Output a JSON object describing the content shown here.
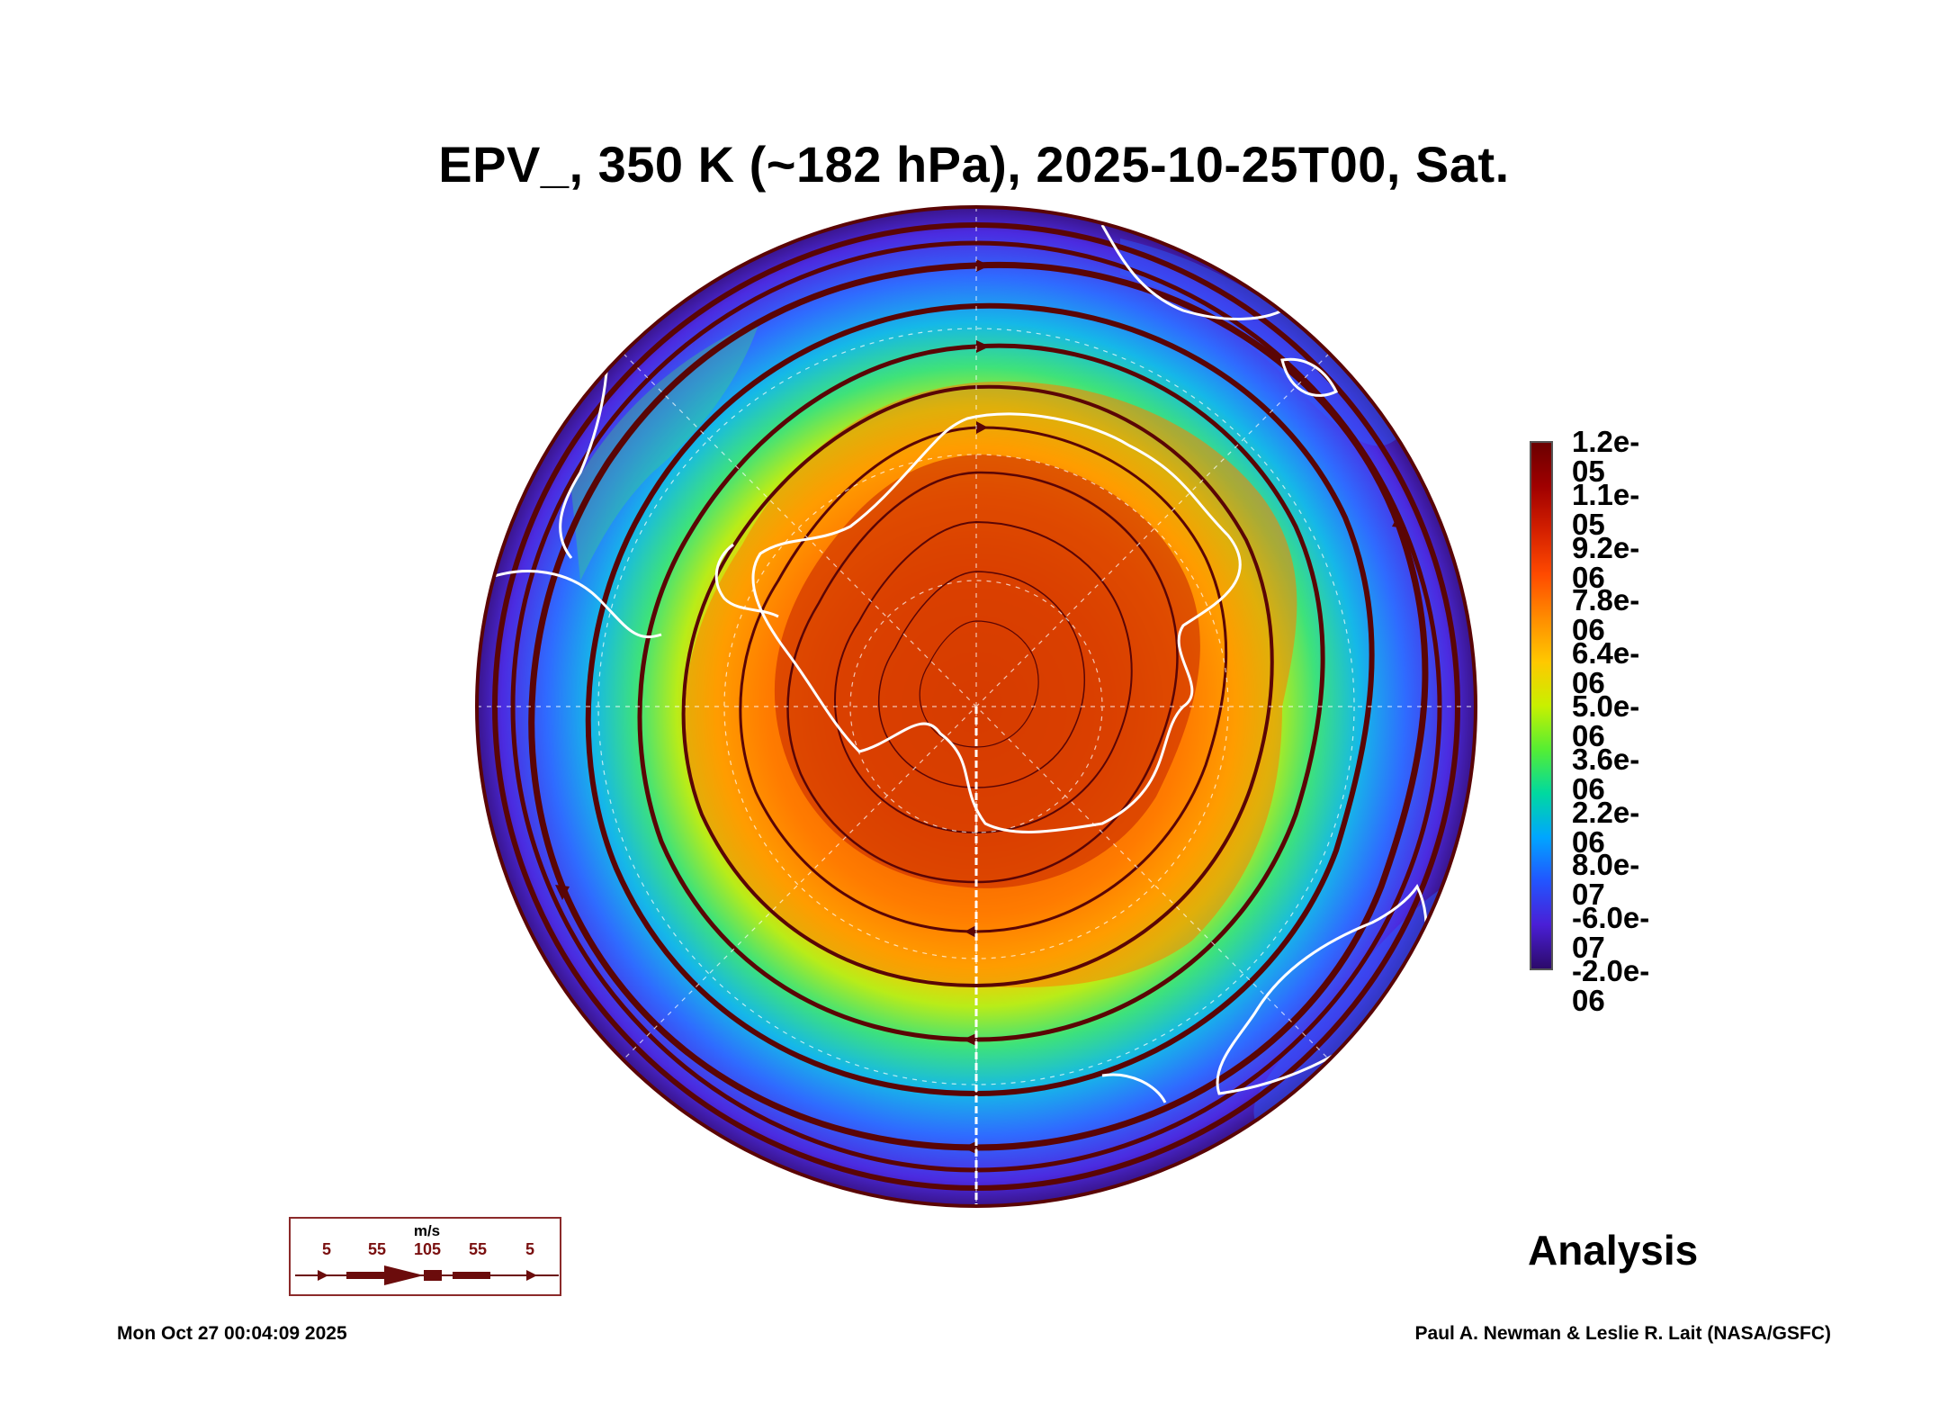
{
  "title": "EPV_, 350 K (~182 hPa), 2025-10-25T00, Sat.",
  "map": {
    "projection": "south-polar-stereographic",
    "field": "EPV_",
    "level": "350 K (~182 hPa)",
    "icons": [
      "antarctica-coastline",
      "streamlines",
      "lat-lon-grid"
    ]
  },
  "colorbar": {
    "labels": [
      "1.2e-05",
      "1.1e-05",
      "9.2e-06",
      "7.8e-06",
      "6.4e-06",
      "5.0e-06",
      "3.6e-06",
      "2.2e-06",
      "8.0e-07",
      "-6.0e-07",
      "-2.0e-06"
    ],
    "colors": [
      "#6b0000",
      "#a00000",
      "#d42000",
      "#ff4a00",
      "#ff8c00",
      "#ffc800",
      "#c8f000",
      "#55ee33",
      "#00d9a0",
      "#00a6ff",
      "#2255ff",
      "#4a1fd6",
      "#2c0a6a"
    ]
  },
  "vector_legend": {
    "unit": "m/s",
    "values": [
      "5",
      "55",
      "105",
      "55",
      "5"
    ],
    "color": "#6b0c0c"
  },
  "analysis_label": "Analysis",
  "footer": {
    "timestamp": "Mon Oct 27 00:04:09 2025",
    "credit": "Paul A. Newman & Leslie R. Lait (NASA/GSFC)"
  }
}
